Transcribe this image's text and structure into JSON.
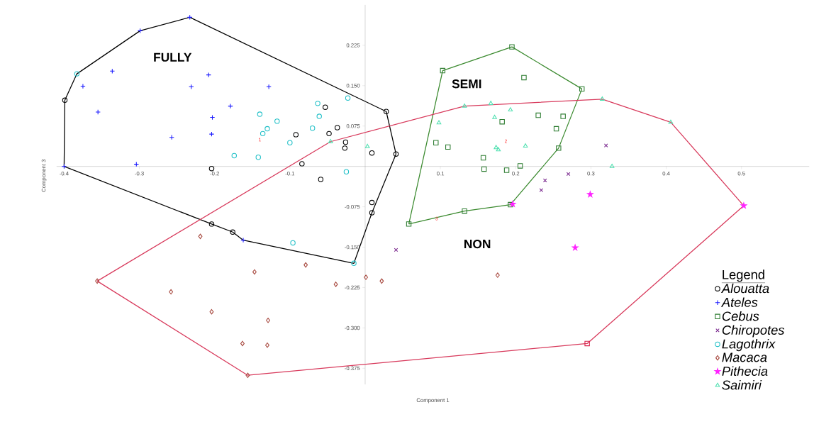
{
  "chart_data": {
    "type": "scatter",
    "xlabel": "Component 1",
    "ylabel": "Component 3",
    "legend_title": "Legend",
    "legend": "bottom right",
    "xlim": [
      -0.41,
      0.59
    ],
    "ylim": [
      -0.405,
      0.3
    ],
    "xticks": [
      -0.4,
      -0.3,
      -0.2,
      -0.1,
      0.1,
      0.2,
      0.3,
      0.4,
      0.5
    ],
    "yticks": [
      0.225,
      {
        "value": 0.15,
        "label": "0.150"
      },
      0.075,
      -0.075,
      {
        "value": -0.15,
        "label": "-0.150"
      },
      -0.225,
      {
        "value": -0.3,
        "label": "-0.300"
      },
      -0.375
    ],
    "annotations": [
      "FULLY",
      "SEMI",
      "NON",
      "1",
      "2",
      "3"
    ],
    "series": [
      {
        "type": "line",
        "color": "#000000",
        "marker": "none",
        "x": [
          -0.4,
          -0.399,
          -0.383,
          -0.299,
          -0.233,
          0.028,
          0.041
        ],
        "values": [
          0,
          0.123,
          0.172,
          0.252,
          0.277,
          0.102,
          0.023
        ]
      },
      {
        "type": "line",
        "color": "#000000",
        "marker": "none",
        "x": [
          -0.4,
          -0.204,
          -0.176,
          -0.162,
          -0.015,
          0.009,
          0.041
        ],
        "values": [
          0,
          -0.107,
          -0.122,
          -0.137,
          -0.18,
          -0.086,
          0.023
        ]
      },
      {
        "type": "line",
        "color": "#3b8a2f",
        "marker": "none",
        "x": [
          0.058,
          0.103,
          0.195,
          0.288
        ],
        "values": [
          -0.107,
          0.178,
          0.222,
          0.144
        ]
      },
      {
        "type": "line",
        "color": "#3b8a2f",
        "marker": "none",
        "x": [
          0.058,
          0.132,
          0.193,
          0.257,
          0.288
        ],
        "values": [
          -0.107,
          -0.083,
          -0.071,
          0.034,
          0.144
        ]
      },
      {
        "type": "line",
        "color": "#d83a5c",
        "marker": "none",
        "x": [
          -0.356,
          -0.046,
          0.132,
          0.315,
          0.406,
          0.503
        ],
        "values": [
          -0.213,
          0.046,
          0.112,
          0.125,
          0.082,
          -0.073
        ]
      },
      {
        "type": "line",
        "color": "#d83a5c",
        "marker": "none",
        "x": [
          -0.356,
          -0.156,
          0.295,
          0.503
        ],
        "values": [
          -0.213,
          -0.388,
          -0.329,
          -0.073
        ]
      },
      {
        "name": "Alouatta",
        "color": "#000000",
        "marker": "circle",
        "x": [
          -0.399,
          -0.053,
          -0.037,
          -0.048,
          -0.092,
          -0.026,
          -0.027,
          0.009,
          0.041,
          0.028,
          -0.084,
          -0.204,
          -0.059,
          0.009,
          0.009,
          -0.204,
          -0.176
        ],
        "values": [
          0.123,
          0.11,
          0.072,
          0.061,
          0.059,
          0.045,
          0.034,
          0.025,
          0.023,
          0.102,
          0.005,
          -0.004,
          -0.024,
          -0.067,
          -0.086,
          -0.107,
          -0.122
        ]
      },
      {
        "name": "Ateles",
        "color": "#1a1aff",
        "marker": "plus",
        "x": [
          -0.233,
          -0.299,
          -0.336,
          -0.375,
          -0.208,
          -0.231,
          -0.128,
          -0.355,
          -0.179,
          -0.203,
          -0.204,
          -0.257,
          -0.304,
          -0.4,
          -0.162
        ],
        "values": [
          0.277,
          0.252,
          0.177,
          0.149,
          0.17,
          0.148,
          0.148,
          0.101,
          0.112,
          0.091,
          0.06,
          0.054,
          0.004,
          0,
          -0.137
        ]
      },
      {
        "name": "Cebus",
        "color": "#2e7d32",
        "marker": "square",
        "x": [
          0.195,
          0.103,
          0.211,
          0.288,
          0.23,
          0.263,
          0.182,
          0.254,
          0.094,
          0.11,
          0.257,
          0.157,
          0.158,
          0.206,
          0.188,
          0.193,
          0.132,
          0.058
        ],
        "values": [
          0.222,
          0.178,
          0.165,
          0.144,
          0.095,
          0.093,
          0.083,
          0.07,
          0.044,
          0.036,
          0.034,
          0.016,
          -0.005,
          0.001,
          -0.007,
          -0.071,
          -0.083,
          -0.107
        ]
      },
      {
        "name": "Chiropotes",
        "color": "#7b2a8f",
        "marker": "cross",
        "x": [
          0.32,
          0.27,
          0.239,
          0.234,
          0.041
        ],
        "values": [
          0.039,
          -0.014,
          -0.026,
          -0.044,
          -0.155
        ]
      },
      {
        "name": "Lagothrix",
        "color": "#22c0c8",
        "marker": "circle",
        "x": [
          -0.383,
          -0.023,
          -0.063,
          -0.14,
          -0.061,
          -0.117,
          -0.13,
          -0.136,
          -0.07,
          -0.1,
          -0.174,
          -0.142,
          -0.025,
          -0.096,
          -0.015
        ],
        "values": [
          0.172,
          0.127,
          0.117,
          0.097,
          0.093,
          0.084,
          0.07,
          0.061,
          0.071,
          0.044,
          0.02,
          0.017,
          -0.01,
          -0.142,
          -0.18
        ]
      },
      {
        "name": "Macaca",
        "color": "#a5443a",
        "marker": "diamond",
        "x": [
          -0.219,
          -0.356,
          -0.258,
          -0.147,
          -0.079,
          -0.039,
          0.001,
          0.022,
          -0.204,
          -0.129,
          -0.163,
          -0.13,
          -0.156,
          0.176
        ],
        "values": [
          -0.13,
          -0.213,
          -0.233,
          -0.196,
          -0.183,
          -0.219,
          -0.206,
          -0.213,
          -0.27,
          -0.286,
          -0.329,
          -0.332,
          -0.388,
          -0.202
        ]
      },
      {
        "name": "Pithecia",
        "color": "#ff22ff",
        "marker": "star",
        "x": [
          0.196,
          0.299,
          0.279,
          0.503
        ],
        "values": [
          -0.07,
          -0.052,
          -0.151,
          -0.073
        ]
      },
      {
        "name": "Saimiri",
        "color": "#4ee0b0",
        "marker": "triangle",
        "x": [
          -0.046,
          0.003,
          0.132,
          0.167,
          0.193,
          0.172,
          0.098,
          0.315,
          0.406,
          0.174,
          0.177,
          0.213,
          0.328
        ],
        "values": [
          0.046,
          0.037,
          0.112,
          0.117,
          0.105,
          0.091,
          0.081,
          0.125,
          0.082,
          0.035,
          0.031,
          0.038,
          0.0
        ]
      },
      {
        "color": "#d8204a",
        "marker": "square",
        "x": [
          0.295
        ],
        "values": [
          -0.329
        ]
      }
    ]
  }
}
